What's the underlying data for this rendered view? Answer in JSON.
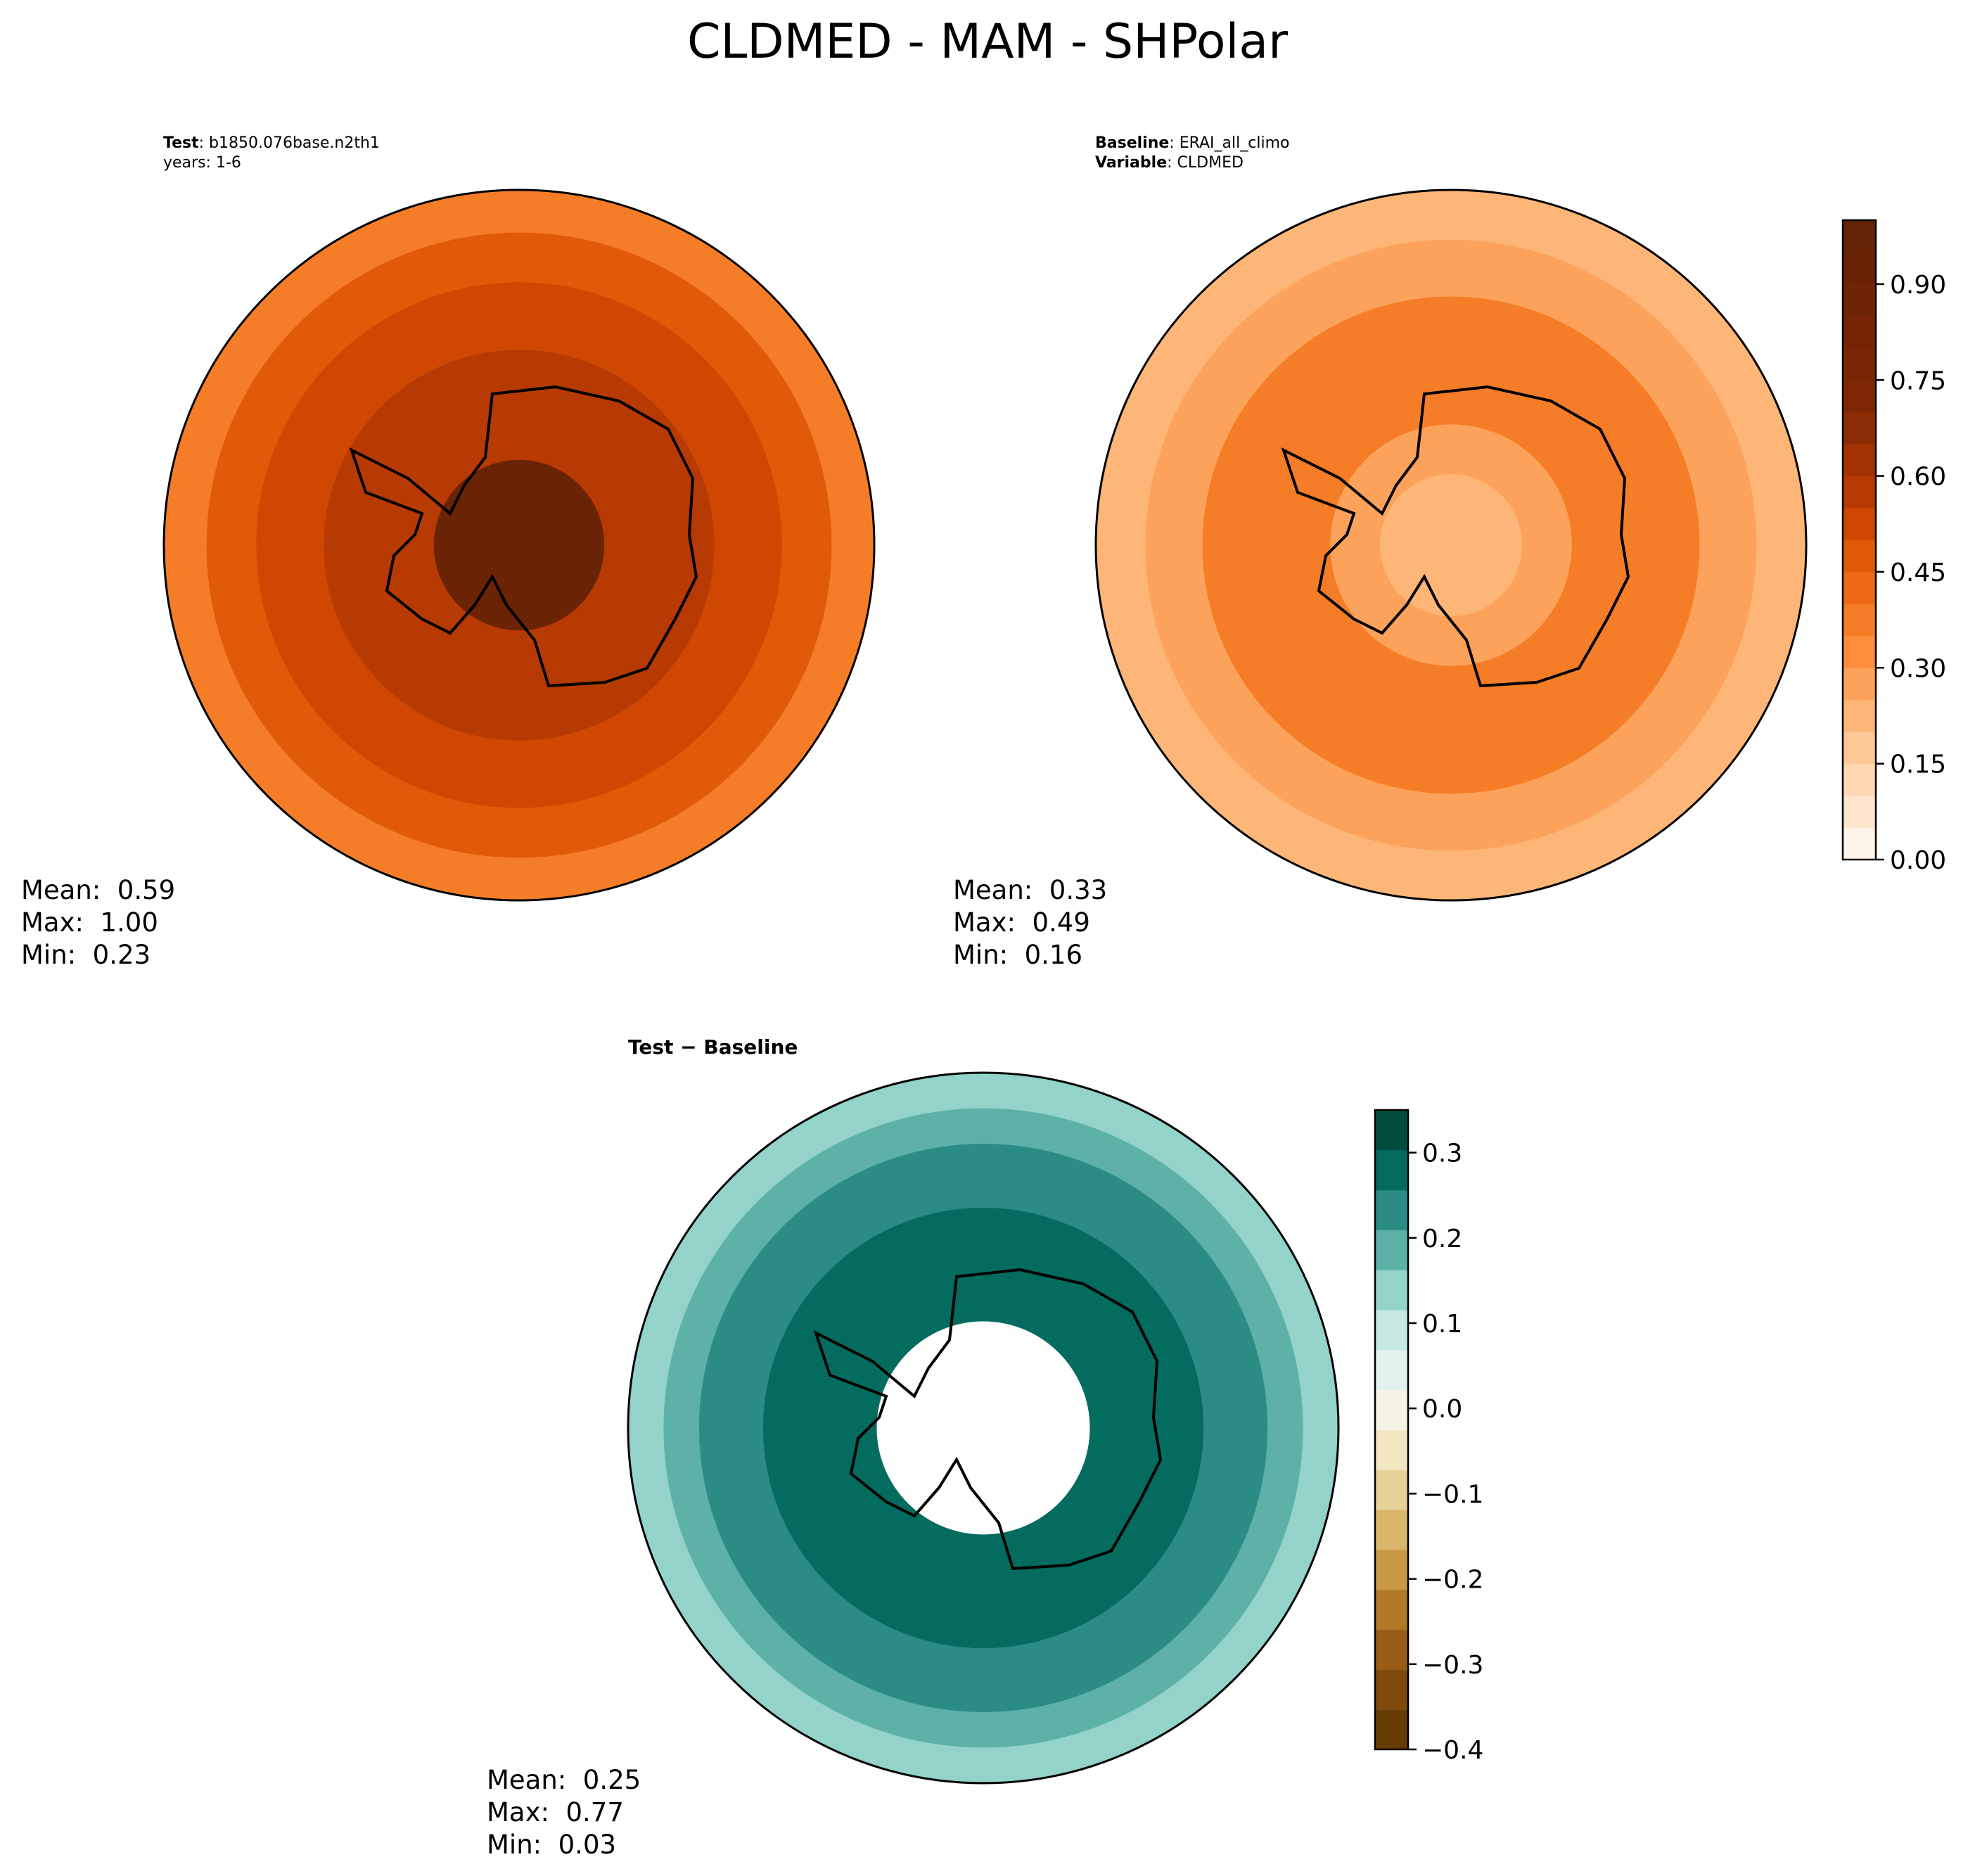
{
  "figure": {
    "title": "CLDMED - MAM - SHPolar"
  },
  "panels": {
    "test": {
      "label": "Test",
      "value": "b1850.076base.n2th1",
      "years": "years: 1-6",
      "mean": "Mean:  0.59",
      "max": "Max:  1.00",
      "min": "Min:  0.23"
    },
    "baseline": {
      "label": "Baseline",
      "value": "ERAI_all_climo",
      "var_label": "Variable",
      "var_value": "CLDMED",
      "mean": "Mean:  0.33",
      "max": "Max:  0.49",
      "min": "Min:  0.16"
    },
    "diff": {
      "title": "Test − Baseline",
      "mean": "Mean:  0.25",
      "max": "Max:  0.77",
      "min": "Min:  0.03"
    }
  },
  "chart_data": [
    {
      "type": "heatmap",
      "projection": "south-polar-stereographic",
      "panel": "test",
      "colormap": "Oranges",
      "levels": [
        0.0,
        1.0
      ],
      "mean": 0.59,
      "max": 1.0,
      "min": 0.23,
      "rings": [
        {
          "r_frac": 1.0,
          "value": 0.35
        },
        {
          "r_frac": 0.88,
          "value": 0.45
        },
        {
          "r_frac": 0.74,
          "value": 0.52
        },
        {
          "r_frac": 0.55,
          "value": 0.58
        },
        {
          "r_frac": 0.36,
          "value": 0.55
        },
        {
          "r_frac": 0.24,
          "value": 0.9
        }
      ]
    },
    {
      "type": "heatmap",
      "projection": "south-polar-stereographic",
      "panel": "baseline",
      "colormap": "Oranges",
      "levels": [
        0.0,
        1.0
      ],
      "mean": 0.33,
      "max": 0.49,
      "min": 0.16,
      "rings": [
        {
          "r_frac": 1.0,
          "value": 0.22
        },
        {
          "r_frac": 0.86,
          "value": 0.28
        },
        {
          "r_frac": 0.7,
          "value": 0.35
        },
        {
          "r_frac": 0.52,
          "value": 0.38
        },
        {
          "r_frac": 0.34,
          "value": 0.25
        },
        {
          "r_frac": 0.2,
          "value": 0.2
        }
      ]
    },
    {
      "type": "heatmap",
      "projection": "south-polar-stereographic",
      "panel": "diff",
      "colormap": "BrBG",
      "levels": [
        -0.4,
        0.35
      ],
      "mean": 0.25,
      "max": 0.77,
      "min": 0.03,
      "rings": [
        {
          "r_frac": 1.0,
          "value": 0.12
        },
        {
          "r_frac": 0.9,
          "value": 0.17
        },
        {
          "r_frac": 0.8,
          "value": 0.22
        },
        {
          "r_frac": 0.62,
          "value": 0.27
        },
        {
          "r_frac": 0.4,
          "value": 0.3
        },
        {
          "r_frac": 0.3,
          "value": 0.0
        }
      ]
    }
  ],
  "colorbars": {
    "abs": {
      "ticks": [
        "0.00",
        "0.15",
        "0.30",
        "0.45",
        "0.60",
        "0.75",
        "0.90"
      ],
      "tick_values": [
        0.0,
        0.15,
        0.3,
        0.45,
        0.6,
        0.75,
        0.9
      ],
      "range": [
        0.0,
        1.0
      ],
      "n_bins": 20,
      "colors": [
        "#fff5eb",
        "#fee6ce",
        "#fdd8b3",
        "#fdc895",
        "#fdb677",
        "#fda25b",
        "#fd8d3c",
        "#f67d27",
        "#ee6a14",
        "#e05a07",
        "#d04701",
        "#b63a02",
        "#a33303",
        "#8c2c04",
        "#7f2704",
        "#7a2604",
        "#752505",
        "#6f2405",
        "#6a2305",
        "#652205"
      ]
    },
    "diff": {
      "ticks": [
        "0.3",
        "0.2",
        "0.1",
        "0.0",
        "−0.1",
        "−0.2",
        "−0.3",
        "−0.4"
      ],
      "tick_values": [
        0.3,
        0.2,
        0.1,
        0.0,
        -0.1,
        -0.2,
        -0.3,
        -0.4
      ],
      "range": [
        -0.4,
        0.35
      ],
      "colors": [
        "#663c05",
        "#7f4a0b",
        "#985c16",
        "#b17828",
        "#c89844",
        "#d9b66a",
        "#e6d198",
        "#f2e6c2",
        "#f5f2e6",
        "#e3f2ef",
        "#c5e9e2",
        "#93d3c9",
        "#5db1a6",
        "#2a8c82",
        "#046b5f",
        "#024c3f"
      ]
    }
  }
}
